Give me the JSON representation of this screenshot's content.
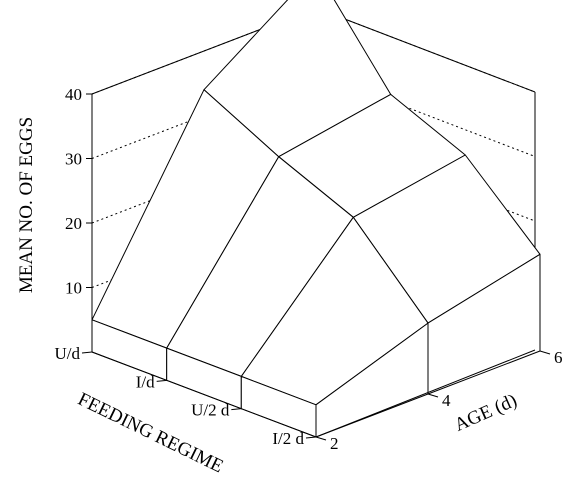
{
  "chart_data": {
    "type": "3d-surface",
    "title": "",
    "ylabel": "MEAN NO. OF EGGS",
    "xlabel": "AGE (d)",
    "zlabel": "FEEDING REGIME",
    "ylim": [
      0,
      40
    ],
    "yticks": [
      "10",
      "20",
      "30",
      "40"
    ],
    "x_categories": [
      "2",
      "4",
      "6"
    ],
    "z_categories": [
      "U/d",
      "I/d",
      "U/2 d",
      "I/2 d"
    ],
    "grid": "dashed on back walls",
    "values": [
      {
        "regime": "U/d",
        "age_2": 5,
        "age_4": 34,
        "age_6": 46
      },
      {
        "regime": "I/d",
        "age_2": 5,
        "age_4": 28,
        "age_6": 31
      },
      {
        "regime": "U/2 d",
        "age_2": 5,
        "age_4": 23,
        "age_6": 26
      },
      {
        "regime": "I/2 d",
        "age_2": 5,
        "age_4": 11,
        "age_6": 15
      }
    ]
  }
}
